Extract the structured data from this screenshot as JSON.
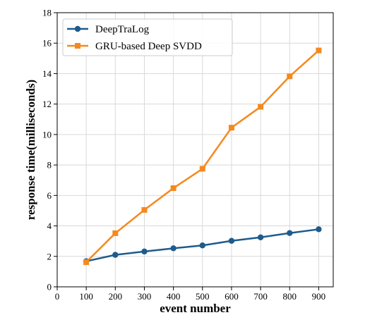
{
  "chart_data": {
    "type": "line",
    "x": [
      100,
      200,
      300,
      400,
      500,
      600,
      700,
      800,
      900
    ],
    "series": [
      {
        "name": "DeepTraLog",
        "values": [
          1.68,
          2.1,
          2.32,
          2.53,
          2.72,
          3.02,
          3.25,
          3.53,
          3.78
        ],
        "color": "#1f5b8c",
        "marker": "circle"
      },
      {
        "name": "GRU-based Deep SVDD",
        "values": [
          1.62,
          3.52,
          5.05,
          6.48,
          7.75,
          10.45,
          11.82,
          13.82,
          15.52
        ],
        "color": "#f5891e",
        "marker": "square"
      }
    ],
    "xlabel": "event number",
    "ylabel": "response time(milliseconds)",
    "xlim": [
      0,
      950
    ],
    "ylim": [
      0,
      18
    ],
    "xticks": [
      0,
      100,
      200,
      300,
      400,
      500,
      600,
      700,
      800,
      900
    ],
    "yticks": [
      0,
      2,
      4,
      6,
      8,
      10,
      12,
      14,
      16,
      18
    ],
    "grid": true,
    "legend_position": "top-left"
  }
}
